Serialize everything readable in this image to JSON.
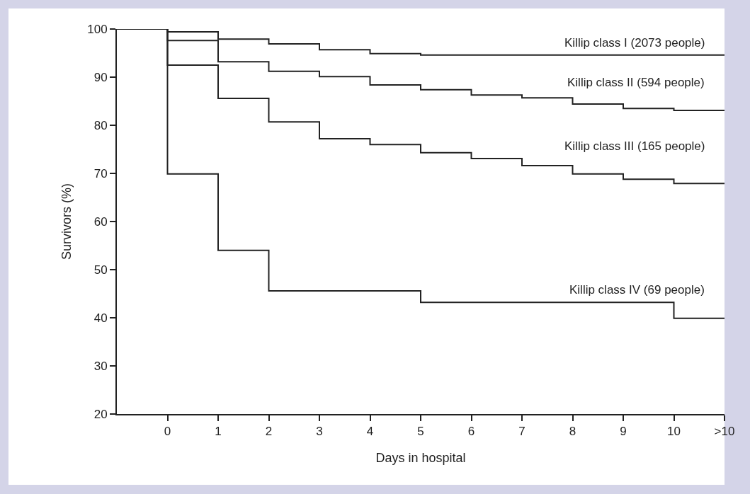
{
  "chart_data": {
    "type": "step",
    "xlabel": "Days in hospital",
    "ylabel": "Survivors (%)",
    "x": [
      -1,
      0,
      1,
      2,
      3,
      4,
      5,
      6,
      7,
      8,
      9,
      10,
      11
    ],
    "xlim": [
      -1,
      11
    ],
    "xticks": [
      0,
      1,
      2,
      3,
      4,
      5,
      6,
      7,
      8,
      9,
      10,
      {
        "value": 11,
        "label": ">10"
      }
    ],
    "ylim": [
      20,
      100
    ],
    "yticks": [
      20,
      30,
      40,
      50,
      60,
      70,
      80,
      90,
      100
    ],
    "legend": false,
    "marker": "none",
    "line_style": "solid",
    "series": [
      {
        "name": "Killip class I (2073 people)",
        "color": "#222222",
        "values": [
          100,
          99.4,
          97.9,
          96.9,
          95.7,
          94.9,
          94.6,
          94.6,
          94.6,
          94.6,
          94.6,
          94.6,
          94.6
        ]
      },
      {
        "name": "Killip class II (594 people)",
        "color": "#222222",
        "values": [
          100,
          97.6,
          93.2,
          91.2,
          90.1,
          88.4,
          87.4,
          86.3,
          85.7,
          84.4,
          83.5,
          83.1,
          83.1
        ]
      },
      {
        "name": "Killip class III (165 people)",
        "color": "#222222",
        "values": [
          100,
          92.5,
          85.6,
          80.7,
          77.2,
          76.0,
          74.3,
          73.1,
          71.6,
          69.9,
          68.8,
          67.9,
          67.9
        ]
      },
      {
        "name": "Killip class IV (69 people)",
        "color": "#222222",
        "values": [
          100,
          69.9,
          54.0,
          45.6,
          45.6,
          45.6,
          43.2,
          43.2,
          43.2,
          43.2,
          43.2,
          39.9,
          39.9
        ]
      }
    ]
  }
}
